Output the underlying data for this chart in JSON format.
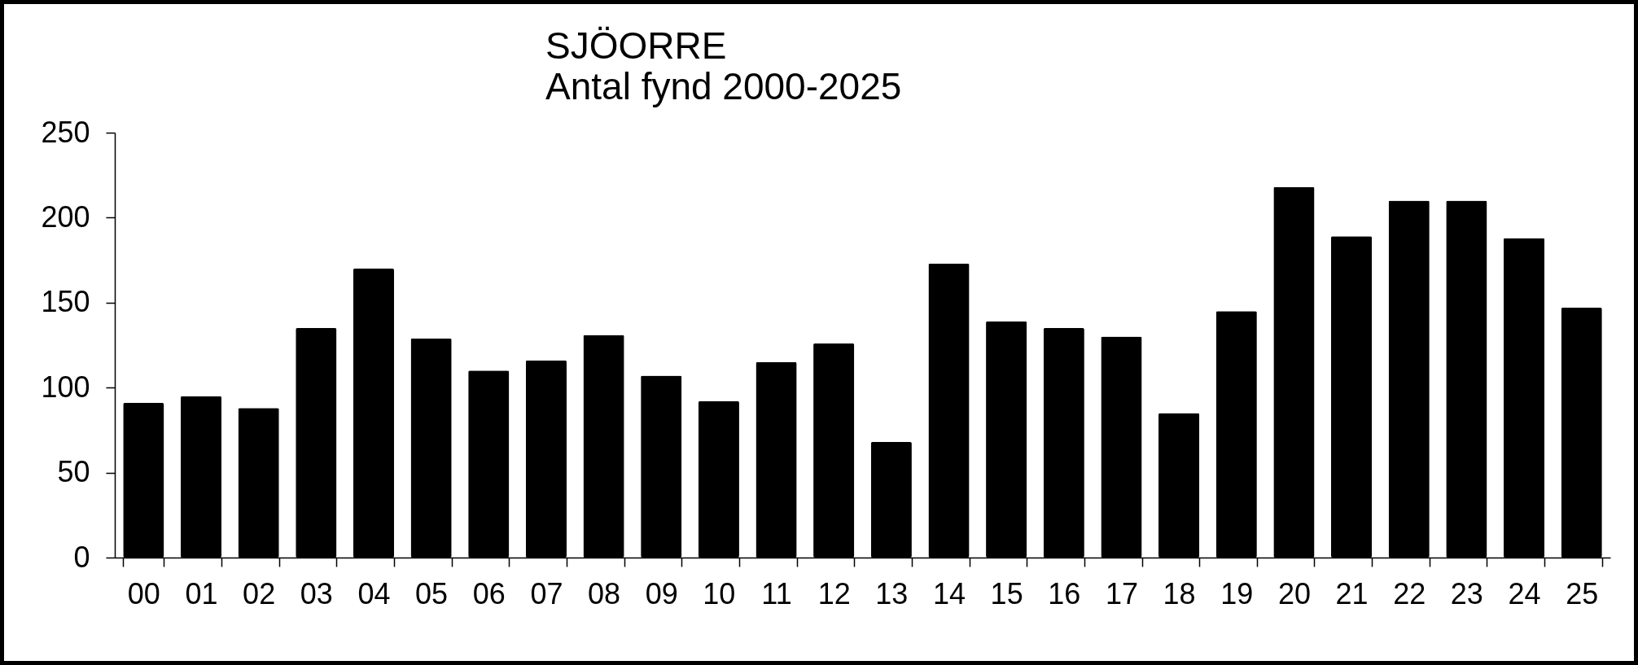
{
  "chart_data": {
    "type": "bar",
    "title": "SJÖORRE",
    "subtitle": "Antal fynd 2000-2025",
    "categories": [
      "00",
      "01",
      "02",
      "03",
      "04",
      "05",
      "06",
      "07",
      "08",
      "09",
      "10",
      "11",
      "12",
      "13",
      "14",
      "15",
      "16",
      "17",
      "18",
      "19",
      "20",
      "21",
      "22",
      "23",
      "24",
      "25"
    ],
    "values": [
      91,
      95,
      88,
      135,
      170,
      129,
      110,
      116,
      131,
      107,
      92,
      115,
      126,
      68,
      173,
      139,
      135,
      130,
      85,
      145,
      218,
      189,
      210,
      210,
      188,
      147
    ],
    "color": "#000000",
    "ylim": [
      0,
      250
    ],
    "yticks": [
      0,
      50,
      100,
      150,
      200,
      250
    ],
    "grid": false
  }
}
